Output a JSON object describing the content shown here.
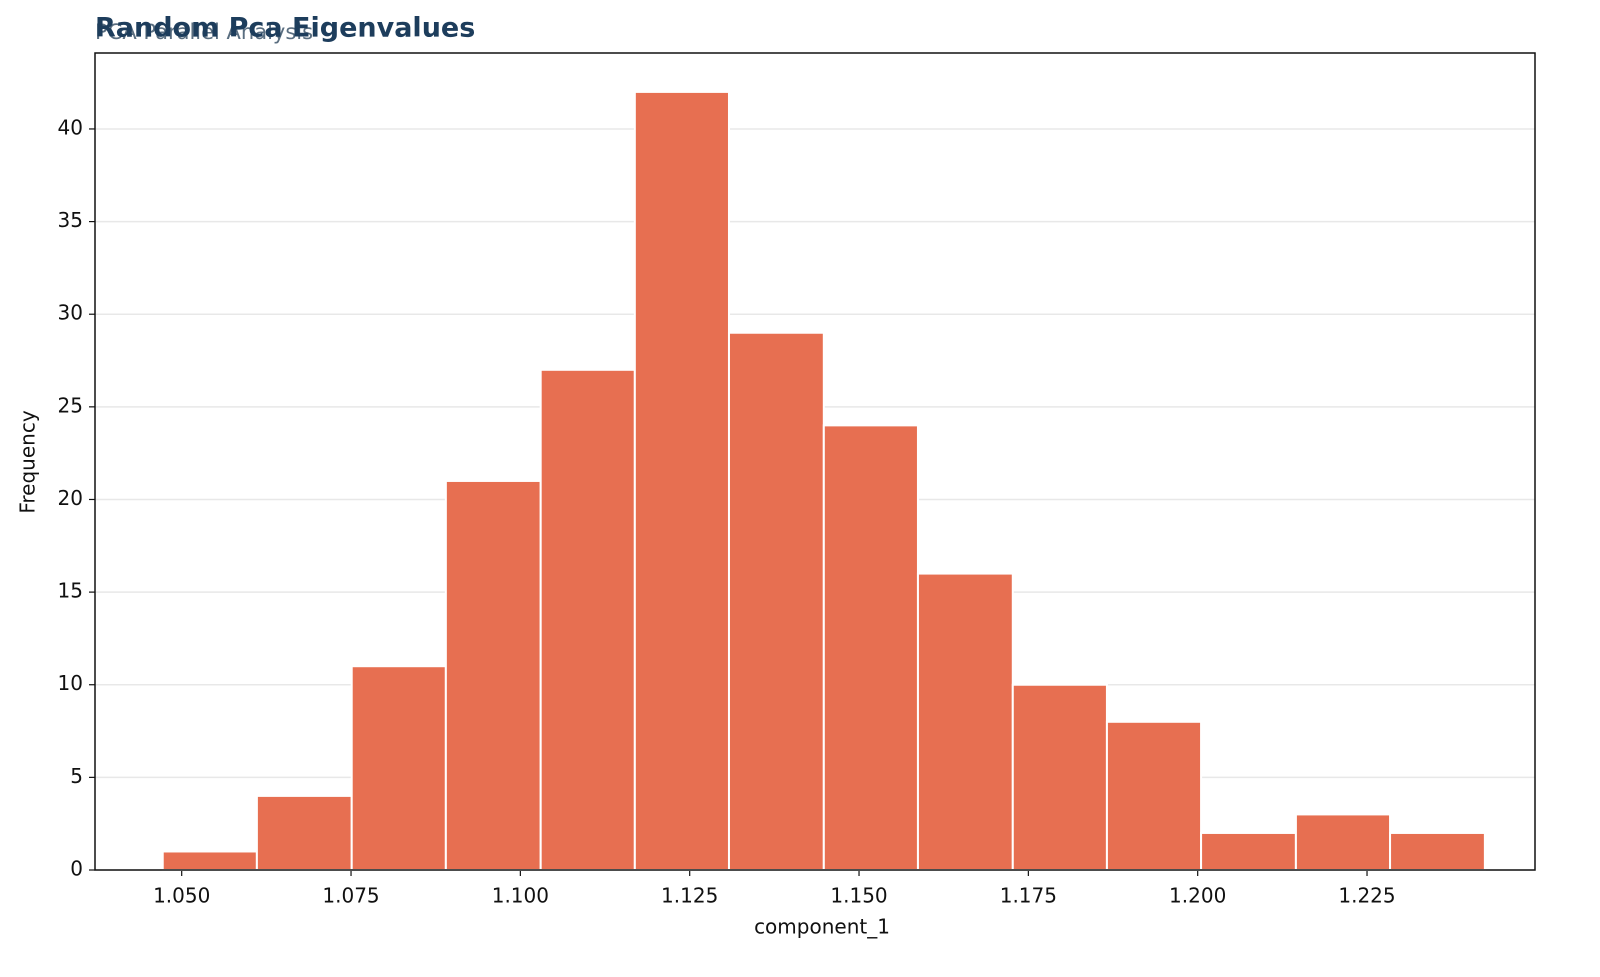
{
  "chart_data": {
    "type": "histogram",
    "title": "Random Pca Eigenvalues",
    "subtitle": "PCA Parallel Analysis",
    "x_label": "component_1",
    "y_label": "Frequency",
    "bins": [
      1.0472,
      1.0611,
      1.0751,
      1.089,
      1.103,
      1.1169,
      1.1308,
      1.1448,
      1.1587,
      1.1727,
      1.1866,
      1.2005,
      1.2145,
      1.2284,
      1.2424
    ],
    "values": [
      1,
      4,
      11,
      21,
      27,
      42,
      29,
      24,
      16,
      10,
      8,
      2,
      3,
      2
    ],
    "color": "#e76f51",
    "xlim": [
      1.0372,
      1.2498
    ],
    "ylim": [
      0,
      44.1
    ],
    "xticks": [
      {
        "value": 1.05,
        "label": "1.050"
      },
      {
        "value": 1.075,
        "label": "1.075"
      },
      {
        "value": 1.1,
        "label": "1.100"
      },
      {
        "value": 1.125,
        "label": "1.125"
      },
      {
        "value": 1.15,
        "label": "1.150"
      },
      {
        "value": 1.175,
        "label": "1.175"
      },
      {
        "value": 1.2,
        "label": "1.200"
      },
      {
        "value": 1.225,
        "label": "1.225"
      }
    ],
    "yticks": [
      0,
      5,
      10,
      15,
      20,
      25,
      30,
      35,
      40
    ],
    "grid": true
  }
}
